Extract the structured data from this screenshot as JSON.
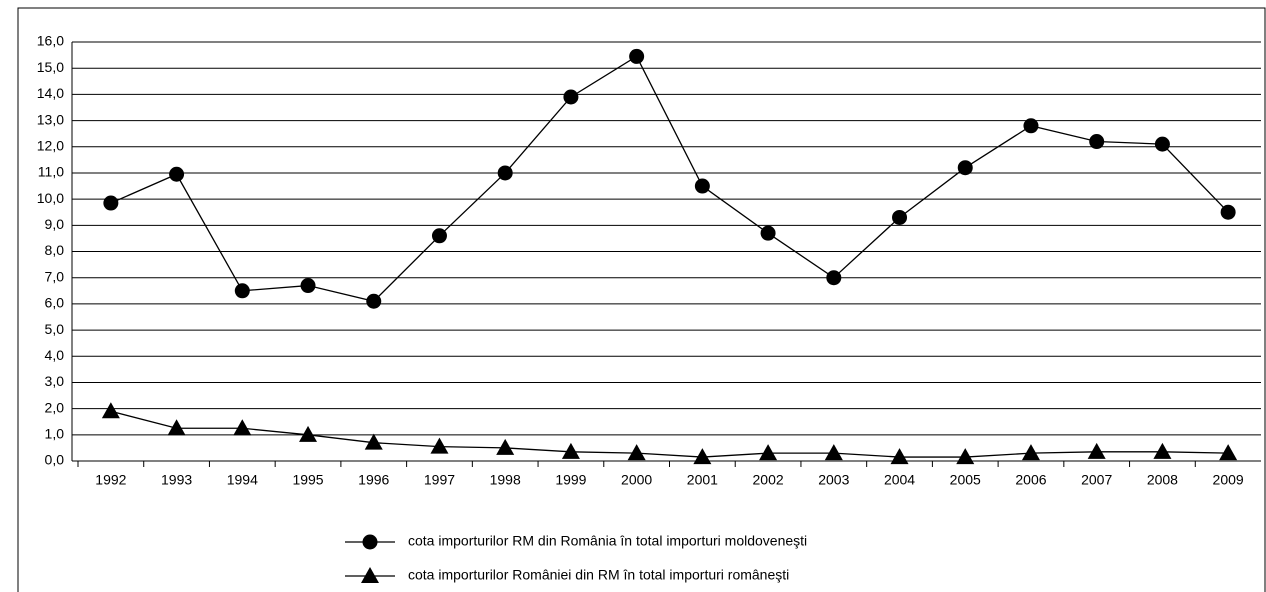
{
  "chart_data": {
    "type": "line",
    "categories": [
      "1992",
      "1993",
      "1994",
      "1995",
      "1996",
      "1997",
      "1998",
      "1999",
      "2000",
      "2001",
      "2002",
      "2003",
      "2004",
      "2005",
      "2006",
      "2007",
      "2008",
      "2009"
    ],
    "series": [
      {
        "name": "cota importurilor RM din România în total importuri moldoveneşti",
        "color": "#000000",
        "marker": "circle",
        "values": [
          9.85,
          10.95,
          6.5,
          6.7,
          6.1,
          8.6,
          11.0,
          13.9,
          15.45,
          10.5,
          8.7,
          7.0,
          9.3,
          11.2,
          12.8,
          12.2,
          12.1,
          9.5
        ]
      },
      {
        "name": "cota importurilor României din RM în total importuri româneşti",
        "color": "#000000",
        "marker": "triangle",
        "values": [
          1.9,
          1.25,
          1.25,
          1.0,
          0.7,
          0.55,
          0.5,
          0.35,
          0.3,
          0.15,
          0.3,
          0.3,
          0.15,
          0.15,
          0.3,
          0.35,
          0.35,
          0.3
        ]
      }
    ],
    "ylim": [
      0,
      16
    ],
    "yticks": [
      {
        "value": 0,
        "label": "0,0"
      },
      {
        "value": 1,
        "label": "1,0"
      },
      {
        "value": 2,
        "label": "2,0"
      },
      {
        "value": 3,
        "label": "3,0"
      },
      {
        "value": 4,
        "label": "4,0"
      },
      {
        "value": 5,
        "label": "5,0"
      },
      {
        "value": 6,
        "label": "6,0"
      },
      {
        "value": 7,
        "label": "7,0"
      },
      {
        "value": 8,
        "label": "8,0"
      },
      {
        "value": 9,
        "label": "9,0"
      },
      {
        "value": 10,
        "label": "10,0"
      },
      {
        "value": 11,
        "label": "11,0"
      },
      {
        "value": 12,
        "label": "12,0"
      },
      {
        "value": 13,
        "label": "13,0"
      },
      {
        "value": 14,
        "label": "14,0"
      },
      {
        "value": 15,
        "label": "15,0"
      },
      {
        "value": 16,
        "label": "16,0"
      }
    ],
    "grid": true,
    "legend": "bottom"
  }
}
